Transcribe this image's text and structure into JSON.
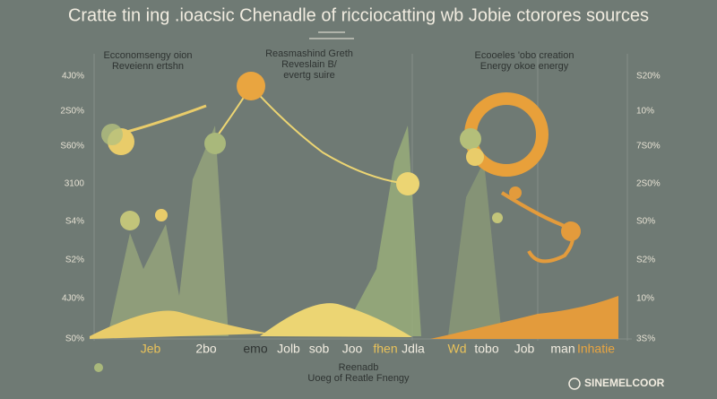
{
  "header": {
    "title": "Cratte tin ing .ioacsic Chenadle of ricciocatting wb Jobie ctorores sources"
  },
  "panels": [
    {
      "lines": [
        "Ecconomsengy oion",
        "Reveienn ertshn"
      ]
    },
    {
      "lines": [
        "Reasmashind Greth",
        "Reveslain B/",
        "evertg suire"
      ]
    },
    {
      "lines": [
        "Ecooeles 'obo creation",
        "Energy okoe energy"
      ]
    }
  ],
  "left_axis": [
    "4J0%",
    "2S0%",
    "S60%",
    "3100",
    "S4%",
    "S2%",
    "4J0%",
    "S0%"
  ],
  "right_axis": [
    "S20%",
    "10%",
    "7S0%",
    "2S0%",
    "S0%",
    "S2%",
    "10%",
    "3S%"
  ],
  "bottom_labels": [
    "Jeb",
    "2bo",
    "emo",
    "Jolb",
    "sob",
    "Joo",
    "fhen",
    "Jdla",
    "Wd",
    "tobo",
    "Job",
    "man",
    "Inhatie"
  ],
  "footer": {
    "lines": [
      "Reenadb",
      "Uoeg of Reatle Fnengy"
    ],
    "brand": "SINEMELCOOR"
  }
}
